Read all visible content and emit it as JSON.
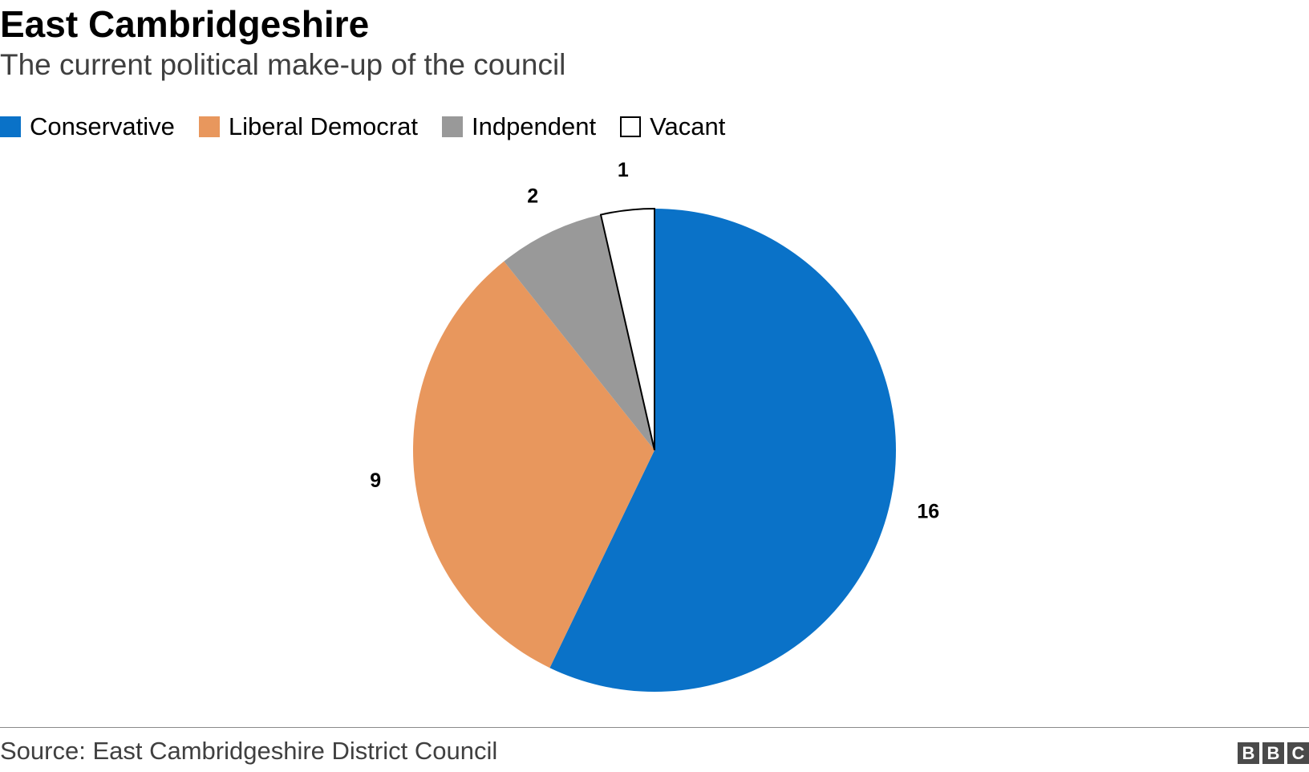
{
  "chart_data": {
    "type": "pie",
    "title": "East Cambridgeshire",
    "subtitle": "The current political make-up of the council",
    "legend_position": "top-left",
    "slices": [
      {
        "name": "Conservative",
        "value": 16,
        "color": "#0a72c8"
      },
      {
        "name": "Liberal Democrat",
        "value": 9,
        "color": "#e8975d"
      },
      {
        "name": "Indpendent",
        "value": 2,
        "color": "#999999"
      },
      {
        "name": "Vacant",
        "value": 1,
        "color": "#ffffff"
      }
    ],
    "source": "Source: East Cambridgeshire District Council"
  },
  "branding": {
    "logo_letters": [
      "B",
      "B",
      "C"
    ]
  }
}
